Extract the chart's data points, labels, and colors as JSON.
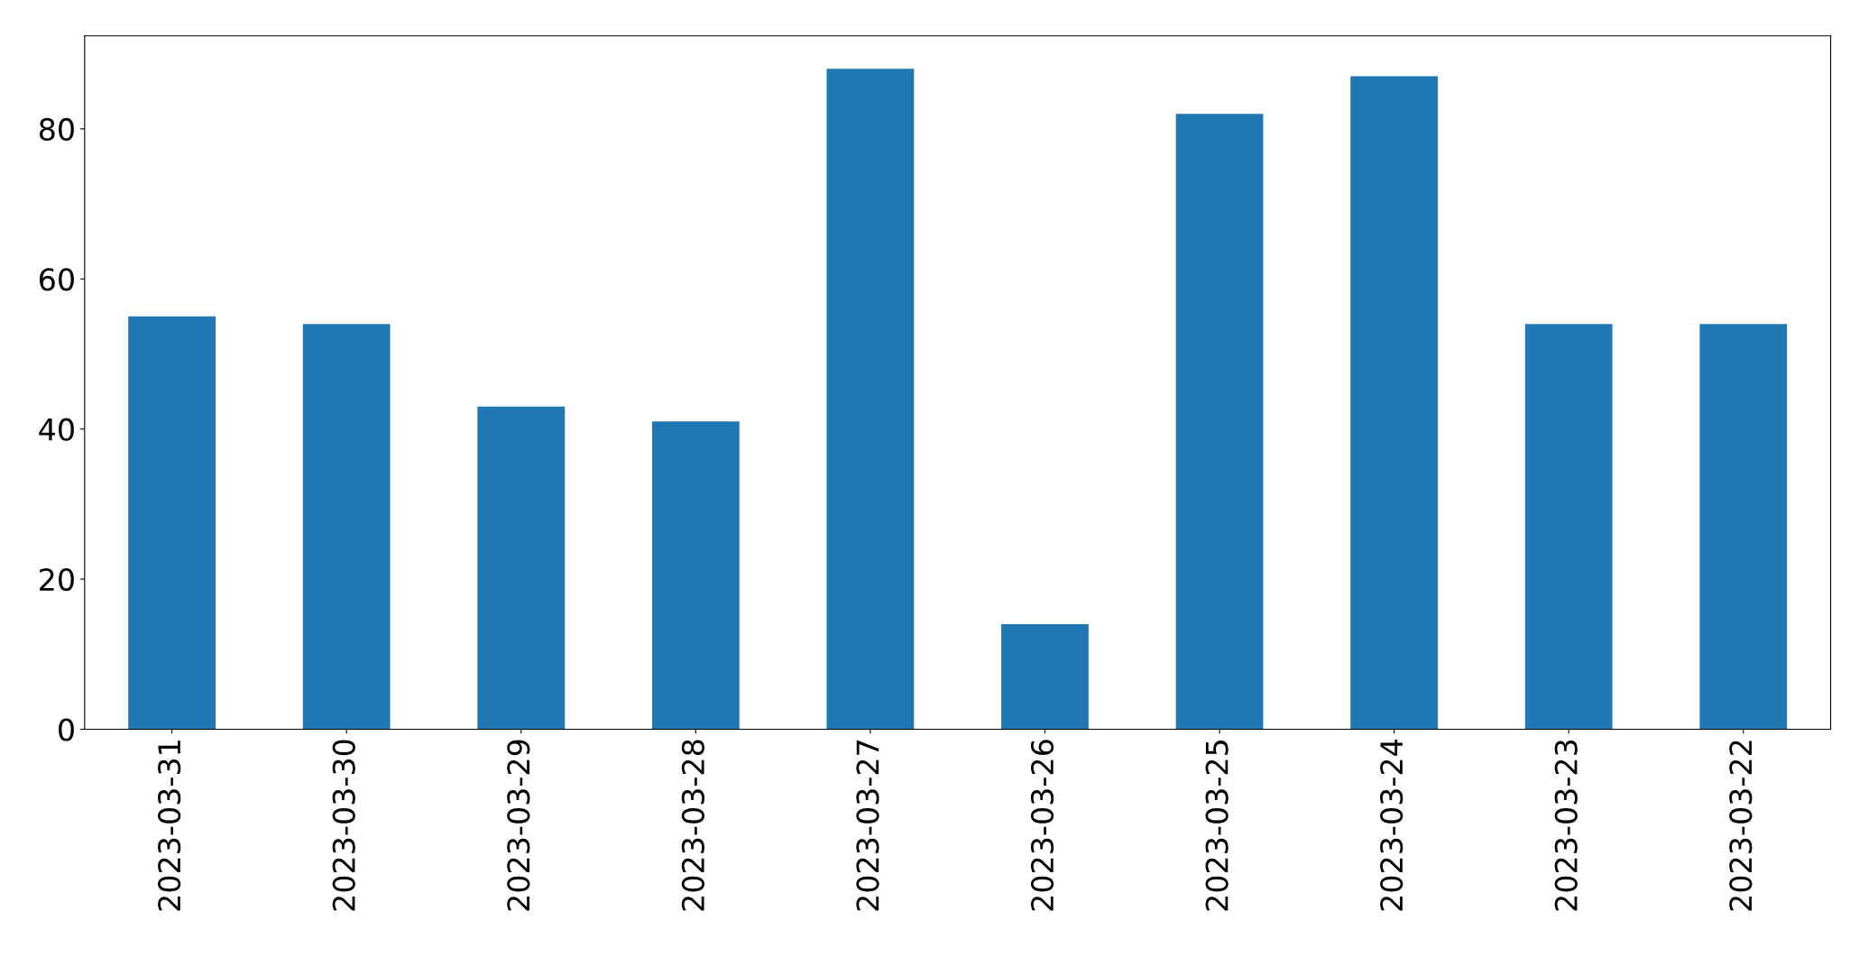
{
  "chart_data": {
    "type": "bar",
    "categories": [
      "2023-03-31",
      "2023-03-30",
      "2023-03-29",
      "2023-03-28",
      "2023-03-27",
      "2023-03-26",
      "2023-03-25",
      "2023-03-24",
      "2023-03-23",
      "2023-03-22"
    ],
    "values": [
      55,
      54,
      43,
      41,
      88,
      14,
      82,
      87,
      54,
      54
    ],
    "color": "#1f77b4",
    "ylim": [
      0,
      92.4
    ],
    "yticks": [
      0,
      20,
      40,
      60,
      80
    ],
    "grid": false
  }
}
